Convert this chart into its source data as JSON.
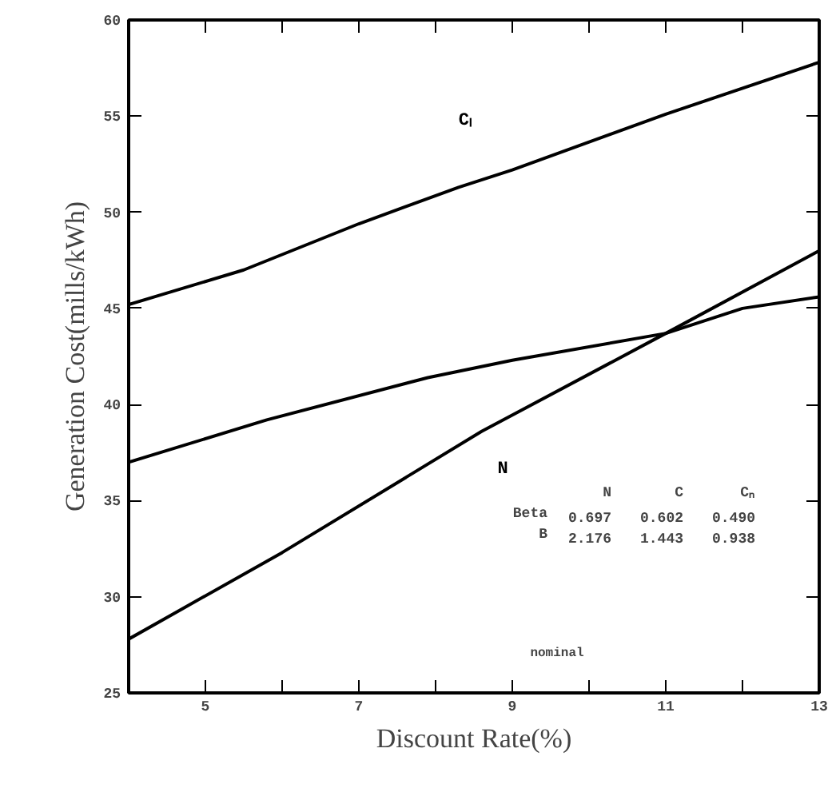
{
  "chart_data": {
    "type": "line",
    "xlabel": "Discount Rate(%)",
    "ylabel": "Generation Cost(mills/kWh)",
    "xlim": [
      4,
      13
    ],
    "ylim": [
      25,
      60
    ],
    "xticks": [
      5,
      {
        "value": 6,
        "label": null
      },
      7,
      {
        "value": 8,
        "label": null
      },
      9,
      {
        "value": 10,
        "label": null
      },
      11,
      {
        "value": 12,
        "label": null
      },
      13
    ],
    "yticks": [
      25,
      30,
      35,
      40,
      45,
      50,
      55,
      60
    ],
    "series": [
      {
        "name": "Cₗ",
        "color": "#000000",
        "x": [
          4,
          5.5,
          7,
          8.3,
          9,
          11,
          13
        ],
        "values": [
          45.2,
          47.0,
          49.4,
          51.3,
          52.2,
          55.1,
          57.8
        ]
      },
      {
        "color": "#000000",
        "x": [
          4,
          5.8,
          7.9,
          9,
          11,
          12,
          13
        ],
        "values": [
          37.0,
          39.2,
          41.4,
          42.3,
          43.7,
          45.0,
          45.6
        ]
      },
      {
        "name": "N",
        "color": "#000000",
        "x": [
          4,
          6,
          8.6,
          11,
          13
        ],
        "values": [
          27.8,
          32.3,
          38.6,
          43.7,
          48.0
        ]
      }
    ],
    "annotations": [
      "N C Cₙ",
      "Beta 0.697 0.602 0.490",
      "B 2.176 1.443 0.938",
      "nominal"
    ],
    "grid": false,
    "marker": "none",
    "line_style": "solid"
  }
}
